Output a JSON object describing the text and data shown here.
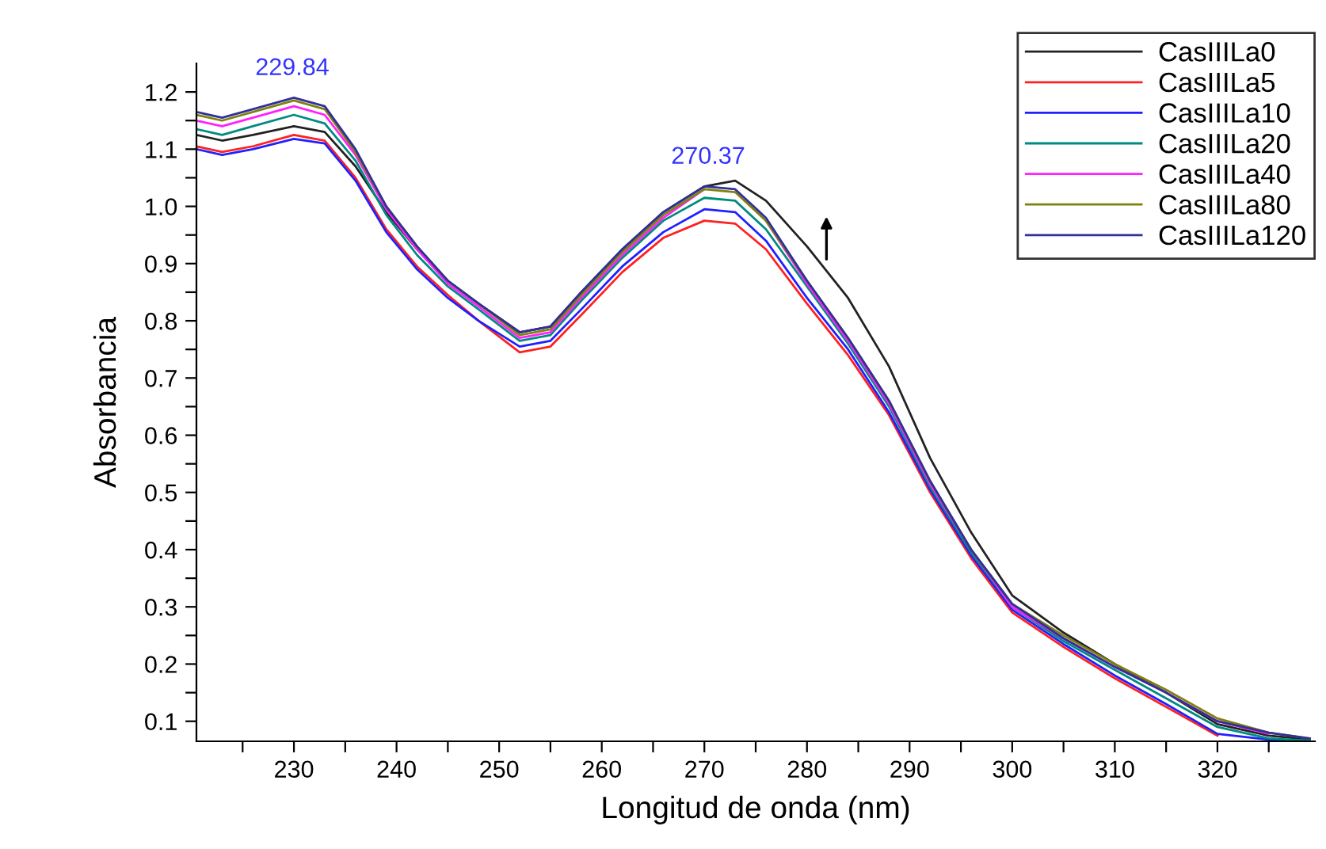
{
  "chart_data": {
    "type": "line",
    "xlabel": "Longitud de onda (nm)",
    "ylabel": "Absorbancia",
    "x": [
      220.5,
      223,
      226,
      230,
      233,
      236,
      239,
      242,
      245,
      248,
      252,
      255,
      258,
      262,
      266,
      270,
      273,
      276,
      280,
      284,
      288,
      292,
      296,
      300,
      305,
      310,
      315,
      320,
      325,
      329
    ],
    "series": [
      {
        "name": "CasIIILa0",
        "color": "#222222",
        "values": [
          1.125,
          1.115,
          1.125,
          1.14,
          1.13,
          1.07,
          0.99,
          0.925,
          0.87,
          0.83,
          0.78,
          0.79,
          0.85,
          0.925,
          0.99,
          1.035,
          1.045,
          1.01,
          0.93,
          0.84,
          0.72,
          0.56,
          0.43,
          0.32,
          0.255,
          0.2,
          0.15,
          0.095,
          0.075,
          0.068
        ]
      },
      {
        "name": "CasIIILa5",
        "color": "#ff2020",
        "values": [
          1.105,
          1.095,
          1.105,
          1.125,
          1.115,
          1.05,
          0.96,
          0.895,
          0.845,
          0.8,
          0.745,
          0.755,
          0.81,
          0.885,
          0.945,
          0.975,
          0.97,
          0.925,
          0.83,
          0.74,
          0.635,
          0.5,
          0.385,
          0.29,
          0.23,
          0.175,
          0.125,
          0.075,
          null,
          null
        ]
      },
      {
        "name": "CasIIILa10",
        "color": "#2020ff",
        "values": [
          1.1,
          1.09,
          1.1,
          1.118,
          1.11,
          1.045,
          0.955,
          0.89,
          0.84,
          0.8,
          0.755,
          0.765,
          0.82,
          0.895,
          0.955,
          0.995,
          0.99,
          0.94,
          0.84,
          0.75,
          0.64,
          0.505,
          0.39,
          0.295,
          0.235,
          0.18,
          0.13,
          0.078,
          0.068,
          0.066
        ]
      },
      {
        "name": "CasIIILa20",
        "color": "#008b80",
        "values": [
          1.135,
          1.125,
          1.14,
          1.16,
          1.145,
          1.08,
          0.985,
          0.915,
          0.86,
          0.82,
          0.765,
          0.775,
          0.835,
          0.91,
          0.975,
          1.015,
          1.01,
          0.96,
          0.86,
          0.76,
          0.65,
          0.51,
          0.395,
          0.3,
          0.24,
          0.19,
          0.14,
          0.09,
          0.07,
          0.066
        ]
      },
      {
        "name": "CasIIILa40",
        "color": "#ff20ff",
        "values": [
          1.15,
          1.14,
          1.155,
          1.175,
          1.16,
          1.09,
          0.995,
          0.925,
          0.865,
          0.825,
          0.77,
          0.78,
          0.84,
          0.915,
          0.98,
          1.03,
          null,
          0.975,
          0.865,
          0.765,
          0.655,
          0.515,
          0.4,
          0.3,
          0.245,
          0.195,
          0.15,
          0.1,
          0.078,
          null
        ]
      },
      {
        "name": "CasIIILa80",
        "color": "#808010",
        "values": [
          1.16,
          1.15,
          1.165,
          1.185,
          1.17,
          1.095,
          1.0,
          0.93,
          0.87,
          0.83,
          0.775,
          0.785,
          0.845,
          0.92,
          0.985,
          1.03,
          1.025,
          0.975,
          0.87,
          0.77,
          0.66,
          0.52,
          0.4,
          0.305,
          0.25,
          0.2,
          0.155,
          0.105,
          0.08,
          0.07
        ]
      },
      {
        "name": "CasIIILa120",
        "color": "#303098",
        "values": [
          1.165,
          1.155,
          1.17,
          1.19,
          1.175,
          1.1,
          1.0,
          0.93,
          0.87,
          0.83,
          0.78,
          0.79,
          0.85,
          0.925,
          0.99,
          1.035,
          1.03,
          0.98,
          0.87,
          0.77,
          0.66,
          0.52,
          0.4,
          0.305,
          0.245,
          0.195,
          0.15,
          0.1,
          0.08,
          0.07
        ]
      }
    ],
    "annotations": [
      {
        "text": "229.84",
        "x": 229.84,
        "y": 1.19
      },
      {
        "text": "270.37",
        "x": 270.37,
        "y": 1.035
      }
    ],
    "xlim": [
      220.5,
      329.5
    ],
    "ylim": [
      0.065,
      1.25
    ],
    "xticks": [
      {
        "value": 225,
        "label": null
      },
      230,
      {
        "value": 235,
        "label": null
      },
      240,
      {
        "value": 245,
        "label": null
      },
      250,
      {
        "value": 255,
        "label": null
      },
      260,
      {
        "value": 265,
        "label": null
      },
      270,
      {
        "value": 275,
        "label": null
      },
      280,
      {
        "value": 285,
        "label": null
      },
      290,
      {
        "value": 295,
        "label": null
      },
      300,
      {
        "value": 305,
        "label": null
      },
      310,
      {
        "value": 315,
        "label": null
      },
      320,
      {
        "value": 325,
        "label": null
      }
    ],
    "yticks": [
      0.1,
      {
        "value": 0.15,
        "label": null
      },
      0.2,
      {
        "value": 0.25,
        "label": null
      },
      0.3,
      {
        "value": 0.35,
        "label": null
      },
      0.4,
      {
        "value": 0.45,
        "label": null
      },
      0.5,
      {
        "value": 0.55,
        "label": null
      },
      0.6,
      {
        "value": 0.65,
        "label": null
      },
      0.7,
      {
        "value": 0.75,
        "label": null
      },
      0.8,
      {
        "value": 0.85,
        "label": null
      },
      0.9,
      {
        "value": 0.95,
        "label": null
      },
      {
        "value": 1.0,
        "label": "1.0"
      },
      {
        "value": 1.05,
        "label": null
      },
      1.1,
      {
        "value": 1.15,
        "label": null
      },
      1.2
    ],
    "grid": false,
    "legend": "top right",
    "marker": "none",
    "line_style": "solid"
  }
}
